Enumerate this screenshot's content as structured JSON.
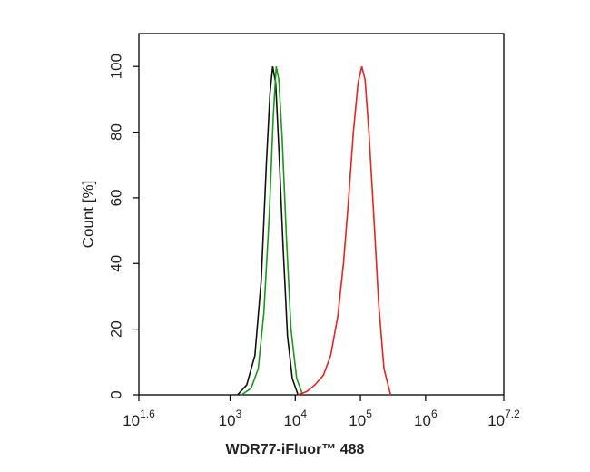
{
  "chart_data": {
    "type": "line",
    "x_label": "WDR77-iFluor™ 488",
    "y_label": "Count [%]",
    "x_scale": "log",
    "xlim": [
      39.8107,
      15848931.9
    ],
    "xticks": [
      {
        "value": 39.8107,
        "label": "10",
        "power": "1.6"
      },
      {
        "value": 1000,
        "label": "10",
        "power": "3"
      },
      {
        "value": 10000,
        "label": "10",
        "power": "4"
      },
      {
        "value": 100000,
        "label": "10",
        "power": "5"
      },
      {
        "value": 1000000,
        "label": "10",
        "power": "6"
      },
      {
        "value": 15848931.9,
        "label": "10",
        "power": "7.2"
      }
    ],
    "ylim": [
      0,
      110
    ],
    "yticks": [
      0,
      20,
      40,
      60,
      80,
      100
    ],
    "grid": false,
    "series": [
      {
        "color": "#111111",
        "x": [
          1300,
          1800,
          2400,
          3000,
          3600,
          4100,
          4500,
          5000,
          5600,
          6500,
          7600,
          9000,
          11000
        ],
        "values": [
          0,
          3,
          12,
          35,
          70,
          92,
          100,
          95,
          75,
          45,
          18,
          5,
          0
        ]
      },
      {
        "color": "#1a9a1a",
        "x": [
          1500,
          2100,
          2700,
          3300,
          4000,
          4600,
          5100,
          5600,
          6300,
          7300,
          8600,
          10500,
          13000
        ],
        "values": [
          0,
          2,
          8,
          25,
          55,
          85,
          100,
          96,
          78,
          48,
          20,
          5,
          0
        ]
      },
      {
        "color": "#e8231f",
        "x": [
          11000,
          15000,
          20000,
          27000,
          35000,
          45000,
          55000,
          65000,
          78000,
          92000,
          105000,
          118000,
          135000,
          160000,
          190000,
          230000,
          290000
        ],
        "values": [
          0,
          1,
          3,
          6,
          12,
          24,
          40,
          58,
          80,
          95,
          100,
          96,
          80,
          55,
          28,
          8,
          0
        ]
      }
    ]
  }
}
